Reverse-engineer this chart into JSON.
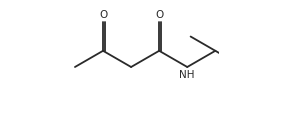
{
  "background_color": "#ffffff",
  "line_color": "#2a2a2a",
  "line_width": 1.3,
  "font_size": 7.5,
  "bl": 0.22,
  "xlim": [
    0.0,
    1.05
  ],
  "ylim": [
    0.05,
    0.95
  ]
}
